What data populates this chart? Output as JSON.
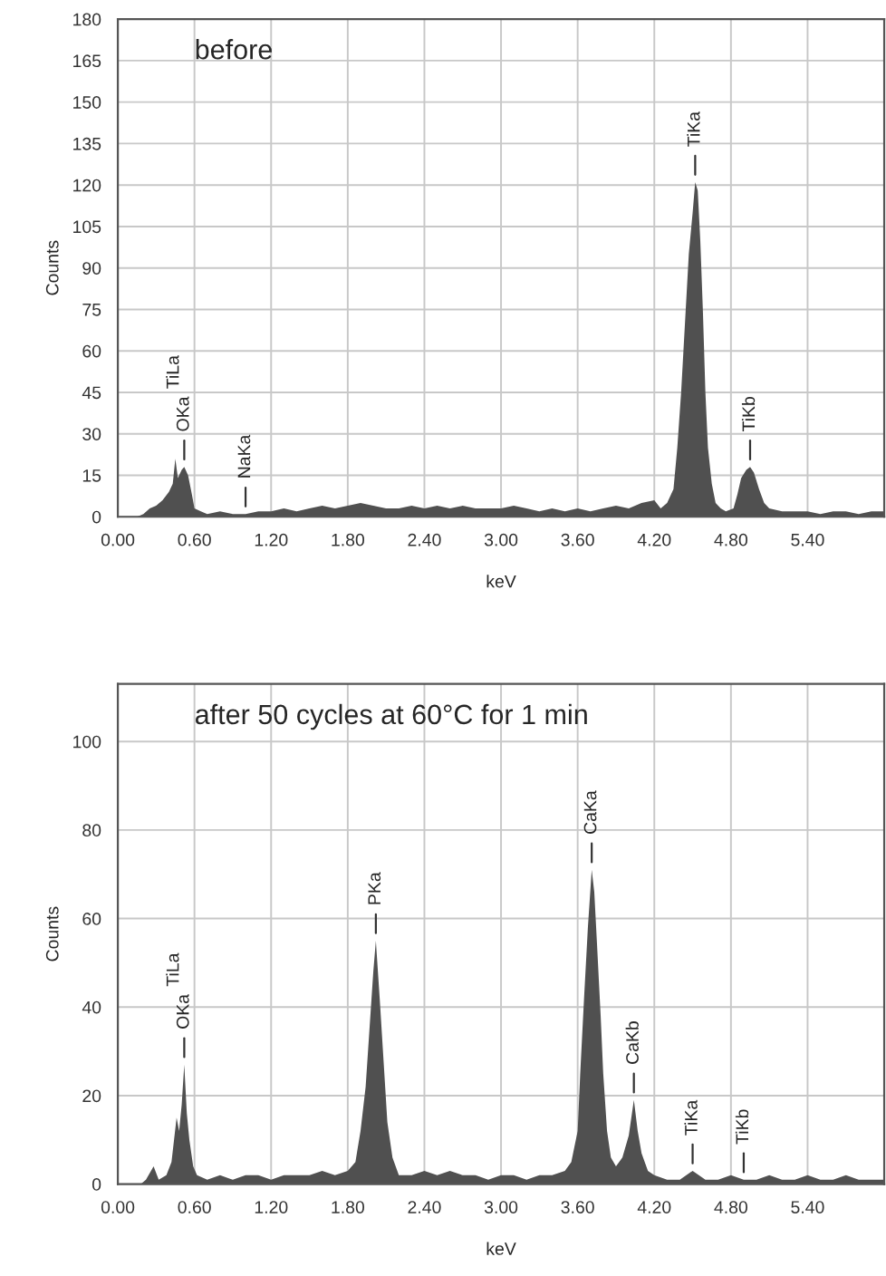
{
  "chart_data": [
    {
      "type": "area",
      "title": "before",
      "xlabel": "keV",
      "ylabel": "Counts",
      "xlim": [
        0,
        6.0
      ],
      "ylim": [
        0,
        180
      ],
      "xticks": [
        {
          "value": 0,
          "label": "0.00"
        },
        {
          "value": 0.6,
          "label": "0.60"
        },
        {
          "value": 1.2,
          "label": "1.20"
        },
        {
          "value": 1.8,
          "label": "1.80"
        },
        {
          "value": 2.4,
          "label": "2.40"
        },
        {
          "value": 3.0,
          "label": "3.00"
        },
        {
          "value": 3.6,
          "label": "3.60"
        },
        {
          "value": 4.2,
          "label": "4.20"
        },
        {
          "value": 4.8,
          "label": "4.80"
        },
        {
          "value": 5.4,
          "label": "5.40"
        }
      ],
      "yticks": [
        0,
        15,
        30,
        45,
        60,
        75,
        90,
        105,
        120,
        135,
        150,
        165,
        180
      ],
      "grid": true,
      "series": [
        {
          "color": "#505050",
          "x": [
            0.0,
            0.15,
            0.2,
            0.25,
            0.3,
            0.35,
            0.4,
            0.43,
            0.45,
            0.47,
            0.5,
            0.52,
            0.55,
            0.58,
            0.6,
            0.65,
            0.7,
            0.8,
            0.9,
            1.0,
            1.1,
            1.2,
            1.3,
            1.4,
            1.5,
            1.6,
            1.7,
            1.8,
            1.9,
            2.0,
            2.1,
            2.2,
            2.3,
            2.4,
            2.5,
            2.6,
            2.7,
            2.8,
            2.9,
            3.0,
            3.1,
            3.2,
            3.3,
            3.4,
            3.5,
            3.6,
            3.7,
            3.8,
            3.9,
            4.0,
            4.1,
            4.2,
            4.25,
            4.3,
            4.35,
            4.38,
            4.41,
            4.44,
            4.47,
            4.5,
            4.52,
            4.54,
            4.56,
            4.58,
            4.6,
            4.62,
            4.65,
            4.68,
            4.72,
            4.76,
            4.82,
            4.85,
            4.88,
            4.92,
            4.95,
            4.98,
            5.02,
            5.06,
            5.1,
            5.2,
            5.3,
            5.4,
            5.5,
            5.6,
            5.7,
            5.8,
            5.9,
            6.0
          ],
          "values": [
            0,
            0,
            1,
            3,
            4,
            6,
            9,
            12,
            21,
            14,
            17,
            18,
            15,
            8,
            3,
            2,
            1,
            2,
            1,
            1,
            2,
            2,
            3,
            2,
            3,
            4,
            3,
            4,
            5,
            4,
            3,
            3,
            4,
            3,
            4,
            3,
            4,
            3,
            3,
            3,
            4,
            3,
            2,
            3,
            2,
            3,
            2,
            3,
            4,
            3,
            5,
            6,
            3,
            5,
            10,
            25,
            45,
            70,
            95,
            110,
            121,
            118,
            100,
            75,
            45,
            25,
            12,
            5,
            3,
            2,
            3,
            8,
            14,
            17,
            18,
            16,
            10,
            5,
            3,
            2,
            2,
            2,
            1,
            2,
            2,
            1,
            2,
            2
          ]
        }
      ],
      "annotations": [
        {
          "text": "OKa",
          "x": 0.52,
          "y": 18
        },
        "TiLa",
        {
          "text": "NaKa",
          "x": 1.0,
          "y": 1
        },
        {
          "text": "TiKa",
          "x": 4.52,
          "y": 121
        },
        {
          "text": "TiKb",
          "x": 4.95,
          "y": 18
        }
      ]
    },
    {
      "type": "area",
      "title": "after 50 cycles at 60°C for 1 min",
      "xlabel": "keV",
      "ylabel": "Counts",
      "xlim": [
        0,
        6.0
      ],
      "ylim": [
        0,
        113
      ],
      "xticks": [
        {
          "value": 0,
          "label": "0.00"
        },
        {
          "value": 0.6,
          "label": "0.60"
        },
        {
          "value": 1.2,
          "label": "1.20"
        },
        {
          "value": 1.8,
          "label": "1.80"
        },
        {
          "value": 2.4,
          "label": "2.40"
        },
        {
          "value": 3.0,
          "label": "3.00"
        },
        {
          "value": 3.6,
          "label": "3.60"
        },
        {
          "value": 4.2,
          "label": "4.20"
        },
        {
          "value": 4.8,
          "label": "4.80"
        },
        {
          "value": 5.4,
          "label": "5.40"
        }
      ],
      "yticks": [
        0,
        20,
        40,
        60,
        80,
        100
      ],
      "grid": true,
      "series": [
        {
          "color": "#505050",
          "x": [
            0.0,
            0.18,
            0.22,
            0.28,
            0.32,
            0.38,
            0.42,
            0.46,
            0.48,
            0.5,
            0.52,
            0.54,
            0.56,
            0.59,
            0.62,
            0.7,
            0.8,
            0.9,
            1.0,
            1.1,
            1.2,
            1.3,
            1.4,
            1.5,
            1.6,
            1.7,
            1.8,
            1.86,
            1.9,
            1.94,
            1.97,
            2.0,
            2.02,
            2.05,
            2.08,
            2.11,
            2.15,
            2.2,
            2.3,
            2.4,
            2.5,
            2.6,
            2.7,
            2.8,
            2.9,
            3.0,
            3.1,
            3.2,
            3.3,
            3.4,
            3.5,
            3.55,
            3.6,
            3.62,
            3.65,
            3.68,
            3.71,
            3.73,
            3.75,
            3.78,
            3.8,
            3.83,
            3.86,
            3.9,
            3.95,
            4.0,
            4.04,
            4.07,
            4.1,
            4.15,
            4.2,
            4.3,
            4.4,
            4.5,
            4.6,
            4.7,
            4.8,
            4.9,
            5.0,
            5.1,
            5.2,
            5.3,
            5.4,
            5.5,
            5.6,
            5.7,
            5.8,
            5.9,
            6.0
          ],
          "values": [
            0,
            0,
            1,
            4,
            1,
            2,
            5,
            15,
            12,
            18,
            27,
            16,
            10,
            4,
            2,
            1,
            2,
            1,
            2,
            2,
            1,
            2,
            2,
            2,
            3,
            2,
            3,
            5,
            12,
            22,
            35,
            48,
            55,
            42,
            28,
            14,
            6,
            2,
            2,
            3,
            2,
            3,
            2,
            2,
            1,
            2,
            2,
            1,
            2,
            2,
            3,
            5,
            12,
            25,
            42,
            58,
            71,
            66,
            55,
            38,
            25,
            12,
            6,
            4,
            6,
            11,
            19,
            12,
            7,
            3,
            2,
            1,
            1,
            3,
            1,
            1,
            2,
            1,
            1,
            2,
            1,
            1,
            2,
            1,
            1,
            2,
            1,
            1,
            1
          ]
        }
      ],
      "annotations": [
        {
          "text": "OKa",
          "x": 0.52,
          "y": 27
        },
        "TiLa",
        {
          "text": "PKa",
          "x": 2.02,
          "y": 55
        },
        {
          "text": "CaKa",
          "x": 3.71,
          "y": 71
        },
        {
          "text": "CaKb",
          "x": 4.04,
          "y": 19
        },
        {
          "text": "TiKa",
          "x": 4.5,
          "y": 3
        },
        {
          "text": "TiKb",
          "x": 4.9,
          "y": 1
        }
      ]
    }
  ]
}
